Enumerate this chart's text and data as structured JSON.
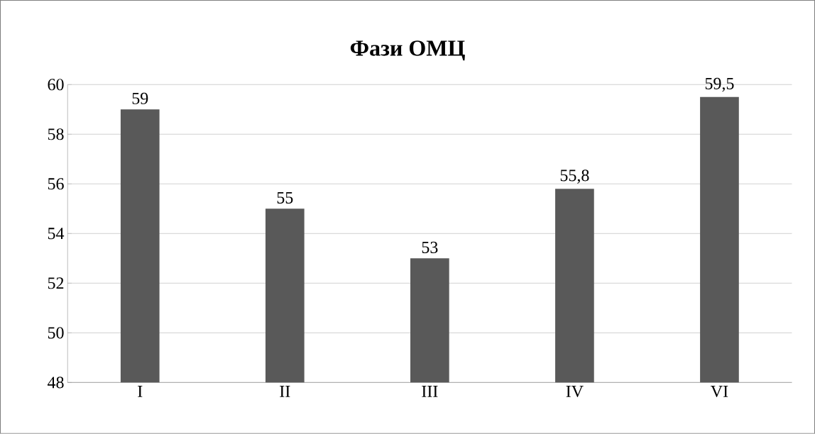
{
  "chart_data": {
    "type": "bar",
    "title": "Фази ОМЦ",
    "categories": [
      "I",
      "II",
      "III",
      "IV",
      "VI"
    ],
    "values": [
      59,
      55,
      53,
      55.8,
      59.5
    ],
    "value_labels": [
      "59",
      "55",
      "53",
      "55,8",
      "59,5"
    ],
    "color": "#595959",
    "ylim": [
      48,
      60
    ],
    "yticks": [
      48,
      50,
      52,
      54,
      56,
      58,
      60
    ],
    "grid": "y"
  }
}
